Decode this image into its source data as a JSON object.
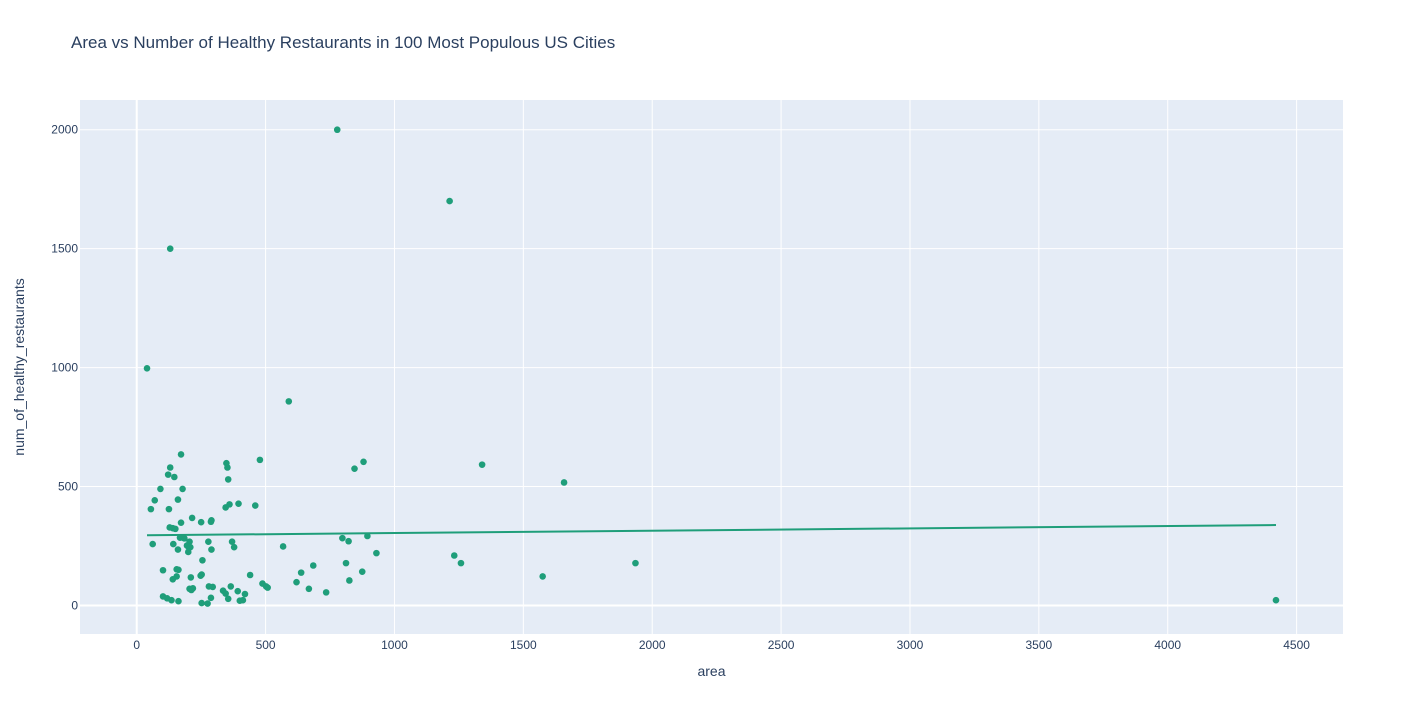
{
  "chart_data": {
    "type": "scatter",
    "title": "Area vs Number of Healthy Restaurants in 100 Most Populous US Cities",
    "xlabel": "area",
    "ylabel": "num_of_healthy_restaurants",
    "xlim": [
      -220,
      4680
    ],
    "ylim": [
      -120,
      2125
    ],
    "xticks": [
      0,
      500,
      1000,
      1500,
      2000,
      2500,
      3000,
      3500,
      4000,
      4500
    ],
    "yticks": [
      0,
      500,
      1000,
      1500,
      2000
    ],
    "grid": true,
    "colors": {
      "point": "#1f9e7a",
      "trend": "#1f9e7a",
      "plot_bg": "#e5ecf6",
      "grid": "#ffffff",
      "text": "#2a3f5f"
    },
    "trendline": {
      "x": [
        40,
        4420
      ],
      "y": [
        295,
        338
      ]
    },
    "points": [
      [
        778,
        2000
      ],
      [
        1214,
        1700
      ],
      [
        130,
        1500
      ],
      [
        40,
        997
      ],
      [
        590,
        858
      ],
      [
        172,
        635
      ],
      [
        478,
        612
      ],
      [
        348,
        598
      ],
      [
        880,
        604
      ],
      [
        352,
        580
      ],
      [
        130,
        580
      ],
      [
        845,
        575
      ],
      [
        1340,
        592
      ],
      [
        1658,
        517
      ],
      [
        122,
        550
      ],
      [
        146,
        540
      ],
      [
        355,
        530
      ],
      [
        92,
        490
      ],
      [
        178,
        490
      ],
      [
        70,
        442
      ],
      [
        160,
        445
      ],
      [
        360,
        425
      ],
      [
        395,
        428
      ],
      [
        460,
        420
      ],
      [
        345,
        412
      ],
      [
        55,
        405
      ],
      [
        125,
        405
      ],
      [
        215,
        368
      ],
      [
        290,
        358
      ],
      [
        288,
        352
      ],
      [
        250,
        350
      ],
      [
        172,
        348
      ],
      [
        128,
        328
      ],
      [
        140,
        325
      ],
      [
        150,
        322
      ],
      [
        895,
        292
      ],
      [
        798,
        283
      ],
      [
        822,
        270
      ],
      [
        168,
        285
      ],
      [
        180,
        285
      ],
      [
        185,
        282
      ],
      [
        205,
        268
      ],
      [
        278,
        268
      ],
      [
        370,
        268
      ],
      [
        62,
        258
      ],
      [
        142,
        258
      ],
      [
        195,
        252
      ],
      [
        202,
        245
      ],
      [
        208,
        245
      ],
      [
        378,
        245
      ],
      [
        568,
        248
      ],
      [
        930,
        220
      ],
      [
        1232,
        210
      ],
      [
        1258,
        178
      ],
      [
        160,
        235
      ],
      [
        290,
        235
      ],
      [
        200,
        225
      ],
      [
        255,
        190
      ],
      [
        812,
        178
      ],
      [
        1935,
        178
      ],
      [
        685,
        168
      ],
      [
        875,
        142
      ],
      [
        102,
        148
      ],
      [
        155,
        152
      ],
      [
        162,
        150
      ],
      [
        638,
        138
      ],
      [
        440,
        128
      ],
      [
        252,
        130
      ],
      [
        248,
        125
      ],
      [
        155,
        122
      ],
      [
        210,
        118
      ],
      [
        1575,
        122
      ],
      [
        140,
        110
      ],
      [
        825,
        105
      ],
      [
        620,
        98
      ],
      [
        488,
        92
      ],
      [
        502,
        80
      ],
      [
        508,
        75
      ],
      [
        668,
        70
      ],
      [
        218,
        72
      ],
      [
        205,
        70
      ],
      [
        212,
        65
      ],
      [
        280,
        80
      ],
      [
        295,
        78
      ],
      [
        365,
        80
      ],
      [
        392,
        60
      ],
      [
        335,
        62
      ],
      [
        345,
        50
      ],
      [
        420,
        48
      ],
      [
        735,
        55
      ],
      [
        102,
        38
      ],
      [
        118,
        30
      ],
      [
        135,
        22
      ],
      [
        162,
        18
      ],
      [
        288,
        32
      ],
      [
        355,
        28
      ],
      [
        400,
        20
      ],
      [
        412,
        22
      ],
      [
        252,
        10
      ],
      [
        275,
        8
      ],
      [
        4420,
        22
      ]
    ]
  }
}
